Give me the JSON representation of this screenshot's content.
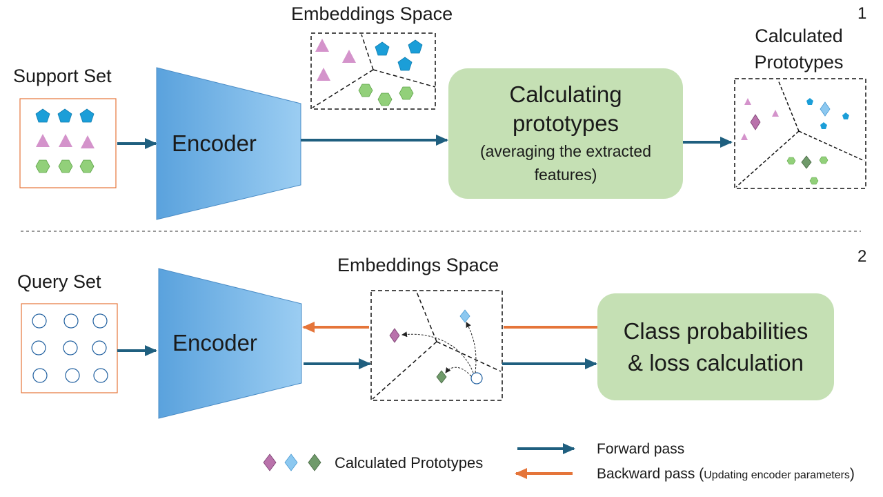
{
  "section1": {
    "number": "1",
    "support_set_label": "Support Set",
    "encoder_label": "Encoder",
    "embeddings_label": "Embeddings Space",
    "calc_box_title_line1": "Calculating",
    "calc_box_title_line2": "prototypes",
    "calc_box_sub_line1": "(averaging the extracted",
    "calc_box_sub_line2": "features)",
    "calculated_prototypes_line1": "Calculated",
    "calculated_prototypes_line2": "Prototypes"
  },
  "section2": {
    "number": "2",
    "query_set_label": "Query Set",
    "encoder_label": "Encoder",
    "embeddings_label": "Embeddings Space",
    "class_box_line1": "Class probabilities",
    "class_box_line2": "& loss calculation"
  },
  "legend": {
    "prototypes_label": "Calculated Prototypes",
    "forward_label": "Forward pass",
    "backward_label": "Backward pass (",
    "backward_small": "Updating encoder parameters",
    "backward_close": ")"
  },
  "colors": {
    "forward_arrow": "#1f5f7f",
    "backward_arrow": "#e5753a",
    "encoder_fill": "#5ba3de",
    "green_box": "#c5e0b4",
    "pentagon": "#1b9ed8",
    "triangle": "#d493cb",
    "hexagon": "#92d07a",
    "proto_pink": "#b972ab",
    "proto_blue": "#8cc8f0",
    "proto_green": "#6f9a6a"
  }
}
